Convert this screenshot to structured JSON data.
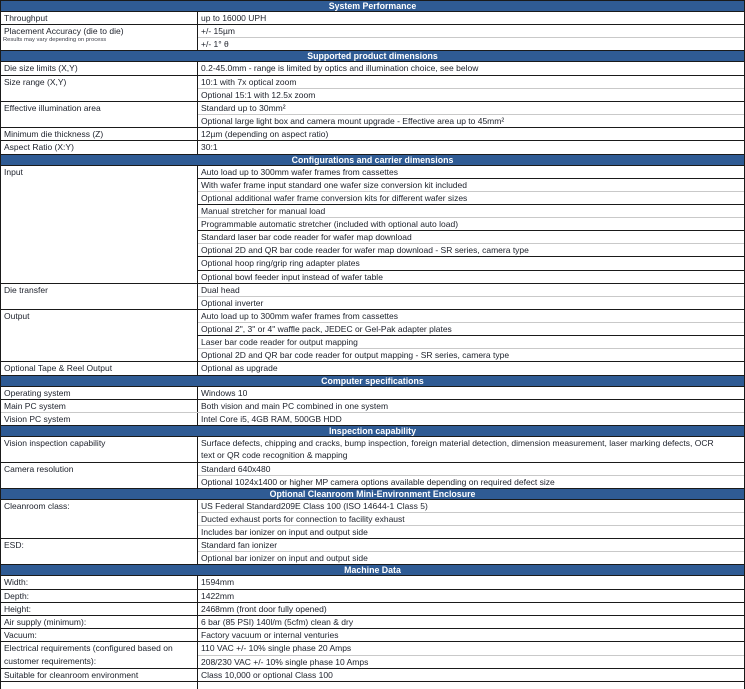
{
  "style": {
    "header_bg": "#2F5B94",
    "header_text": "#ffffff",
    "border_dark": "#1a1a1a",
    "border_light": "#c9c9c9"
  },
  "sections": [
    {
      "title": "System Performance",
      "groups": [
        {
          "label_lines": [
            "Throughput"
          ],
          "lines": [
            {
              "text": "up to 16000 UPH"
            }
          ]
        },
        {
          "label_lines": [
            "Placement Accuracy (die to die)"
          ],
          "note": "Results may vary depending on process",
          "lines": [
            {
              "text": "+/- 15µm"
            },
            {
              "text": "+/- 1° θ",
              "divider": "light"
            }
          ]
        }
      ]
    },
    {
      "title": "Supported product dimensions",
      "groups": [
        {
          "label_lines": [
            "Die size limits (X,Y)"
          ],
          "lines": [
            {
              "text": "0.2-45.0mm - range is limited by optics and illumination choice, see below"
            }
          ]
        },
        {
          "label_lines": [
            "Size range (X,Y)"
          ],
          "lines": [
            {
              "text": "10:1 with 7x optical zoom"
            },
            {
              "text": "Optional 15:1 with 12.5x zoom",
              "divider": "light"
            }
          ]
        },
        {
          "label_lines": [
            "Effective illumination area"
          ],
          "lines": [
            {
              "text": "Standard up to 30mm²"
            },
            {
              "text": "Optional large light box and camera mount upgrade - Effective area up to 45mm²",
              "divider": "light"
            }
          ]
        },
        {
          "label_lines": [
            "Minimum die thickness (Z)"
          ],
          "lines": [
            {
              "text": "12µm (depending on aspect ratio)"
            }
          ]
        },
        {
          "label_lines": [
            "Aspect Ratio (X:Y)"
          ],
          "lines": [
            {
              "text": "30:1"
            }
          ]
        }
      ]
    },
    {
      "title": "Configurations and carrier dimensions",
      "groups": [
        {
          "label_lines": [
            "Input"
          ],
          "lines": [
            {
              "text": "Auto load up to 300mm wafer frames from cassettes"
            },
            {
              "text": "With wafer frame input standard one wafer size conversion kit included",
              "divider": "dark"
            },
            {
              "text": "Optional additional wafer frame conversion kits for different wafer sizes",
              "divider": "light"
            },
            {
              "text": "Manual stretcher for manual load",
              "divider": "dark"
            },
            {
              "text": "Programmable automatic stretcher (included with optional auto load)",
              "divider": "light"
            },
            {
              "text": "Standard laser bar code reader for wafer map download",
              "divider": "dark"
            },
            {
              "text": "Optional 2D and QR bar code reader for wafer map download - SR series, camera type",
              "divider": "light"
            },
            {
              "text": "Optional hoop ring/grip ring adapter plates",
              "divider": "dark"
            },
            {
              "text": "Optional bowl feeder input instead of wafer table",
              "divider": "dark"
            }
          ]
        },
        {
          "label_lines": [
            "Die transfer"
          ],
          "lines": [
            {
              "text": "Dual head"
            },
            {
              "text": "Optional inverter",
              "divider": "light"
            }
          ]
        },
        {
          "label_lines": [
            "Output"
          ],
          "lines": [
            {
              "text": "Auto load up to 300mm wafer frames from cassettes"
            },
            {
              "text": "Optional 2\", 3\" or 4\" waffle pack, JEDEC or Gel-Pak adapter plates",
              "divider": "light"
            },
            {
              "text": "Laser bar code reader for output mapping",
              "divider": "dark"
            },
            {
              "text": "Optional 2D and QR bar code reader for output mapping - SR series, camera type",
              "divider": "light"
            }
          ]
        },
        {
          "label_lines": [
            "Optional Tape & Reel Output"
          ],
          "lines": [
            {
              "text": "Optional as upgrade"
            }
          ]
        }
      ]
    },
    {
      "title": "Computer specifications",
      "groups": [
        {
          "label_lines": [
            "Operating system"
          ],
          "lines": [
            {
              "text": "Windows 10"
            }
          ]
        },
        {
          "label_lines": [
            "Main PC system"
          ],
          "bottom": "light",
          "lines": [
            {
              "text": "Both vision and main PC combined in one system"
            }
          ]
        },
        {
          "label_lines": [
            "Vision PC system"
          ],
          "lines": [
            {
              "text": "Intel Core i5, 4GB RAM, 500GB HDD"
            }
          ]
        }
      ]
    },
    {
      "title": "Inspection capability",
      "groups": [
        {
          "label_lines": [
            "Vision inspection capability"
          ],
          "lines": [
            {
              "text": "Surface defects, chipping and cracks, bump inspection, foreign material detection, dimension measurement, laser marking defects, OCR"
            },
            {
              "text": "text or QR code recognition & mapping",
              "divider": "none"
            }
          ]
        },
        {
          "label_lines": [
            "Camera resolution"
          ],
          "lines": [
            {
              "text": "Standard 640x480"
            },
            {
              "text": "Optional 1024x1400 or higher MP camera options available depending on required defect size",
              "divider": "light"
            }
          ]
        }
      ]
    },
    {
      "title": "Optional Cleanroom Mini-Environment Enclosure",
      "groups": [
        {
          "label_lines": [
            "Cleanroom class:"
          ],
          "lines": [
            {
              "text": "US Federal Standard209E Class 100 (ISO 14644-1 Class 5)"
            },
            {
              "text": "Ducted exhaust ports for connection to facility exhaust",
              "divider": "light"
            },
            {
              "text": "Includes bar ionizer on input and output side",
              "divider": "light"
            }
          ]
        },
        {
          "label_lines": [
            "ESD:"
          ],
          "lines": [
            {
              "text": "Standard fan ionizer"
            },
            {
              "text": "Optional bar ionizer on input and output side",
              "divider": "light"
            }
          ]
        }
      ]
    },
    {
      "title": "Machine Data",
      "groups": [
        {
          "label_lines": [
            "Width:"
          ],
          "lines": [
            {
              "text": "1594mm"
            }
          ]
        },
        {
          "label_lines": [
            "Depth:"
          ],
          "lines": [
            {
              "text": "1422mm"
            }
          ]
        },
        {
          "label_lines": [
            "Height:"
          ],
          "lines": [
            {
              "text": "2468mm (front door fully opened)"
            }
          ]
        },
        {
          "label_lines": [
            "Air supply (minimum):"
          ],
          "lines": [
            {
              "text": "6 bar (85 PSI) 140l/m (5cfm) clean & dry"
            }
          ]
        },
        {
          "label_lines": [
            "Vacuum:"
          ],
          "lines": [
            {
              "text": "Factory vacuum or internal venturies"
            }
          ]
        },
        {
          "label_lines": [
            "Electrical requirements (configured based on",
            "customer requirements):"
          ],
          "lines": [
            {
              "text": "110 VAC +/- 10% single phase 20 Amps"
            },
            {
              "text": "208/230 VAC +/- 10% single phase 10 Amps",
              "divider": "light"
            }
          ]
        },
        {
          "label_lines": [
            "Suitable for cleanroom environment"
          ],
          "lines": [
            {
              "text": "Class 10,000 or optional Class 100"
            }
          ]
        }
      ]
    }
  ]
}
